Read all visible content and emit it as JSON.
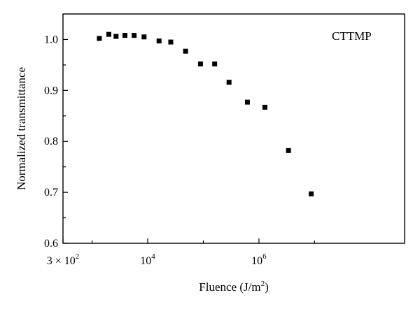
{
  "chart_data": {
    "type": "scatter",
    "title": "",
    "xlabel": "Fluence (J/m",
    "xlabel_sup": "2",
    "xlabel_close": ")",
    "ylabel": "Normalized transmittance",
    "x_scale": "log",
    "xlim": [
      300,
      10000000
    ],
    "ylim": [
      0.6,
      1.05
    ],
    "grid": false,
    "legend": {
      "text": "CTTMP",
      "placement": "top-right"
    },
    "x_ticks": [
      {
        "value": 300,
        "base": "3 × 10",
        "exp": "2"
      },
      {
        "value": 10000,
        "base": "10",
        "exp": "4"
      },
      {
        "value": 1000000,
        "base": "10",
        "exp": "6"
      }
    ],
    "y_ticks": [
      {
        "value": 0.6,
        "label": "0.6"
      },
      {
        "value": 0.7,
        "label": "0.7"
      },
      {
        "value": 0.8,
        "label": "0.8"
      },
      {
        "value": 0.9,
        "label": "0.9"
      },
      {
        "value": 1.0,
        "label": "1.0"
      }
    ],
    "series": [
      {
        "marker": "square",
        "color": "#000000",
        "points": [
          {
            "x": 1350,
            "y": 1.002
          },
          {
            "x": 2000,
            "y": 1.01
          },
          {
            "x": 2700,
            "y": 1.006
          },
          {
            "x": 3900,
            "y": 1.008
          },
          {
            "x": 5700,
            "y": 1.008
          },
          {
            "x": 8600,
            "y": 1.005
          },
          {
            "x": 16000,
            "y": 0.997
          },
          {
            "x": 26000,
            "y": 0.995
          },
          {
            "x": 48000,
            "y": 0.977
          },
          {
            "x": 89000,
            "y": 0.952
          },
          {
            "x": 160000,
            "y": 0.952
          },
          {
            "x": 290000,
            "y": 0.916
          },
          {
            "x": 620000,
            "y": 0.877
          },
          {
            "x": 1280000,
            "y": 0.867
          },
          {
            "x": 3400000,
            "y": 0.782
          },
          {
            "x": 8700000,
            "y": 0.697
          }
        ]
      }
    ]
  }
}
